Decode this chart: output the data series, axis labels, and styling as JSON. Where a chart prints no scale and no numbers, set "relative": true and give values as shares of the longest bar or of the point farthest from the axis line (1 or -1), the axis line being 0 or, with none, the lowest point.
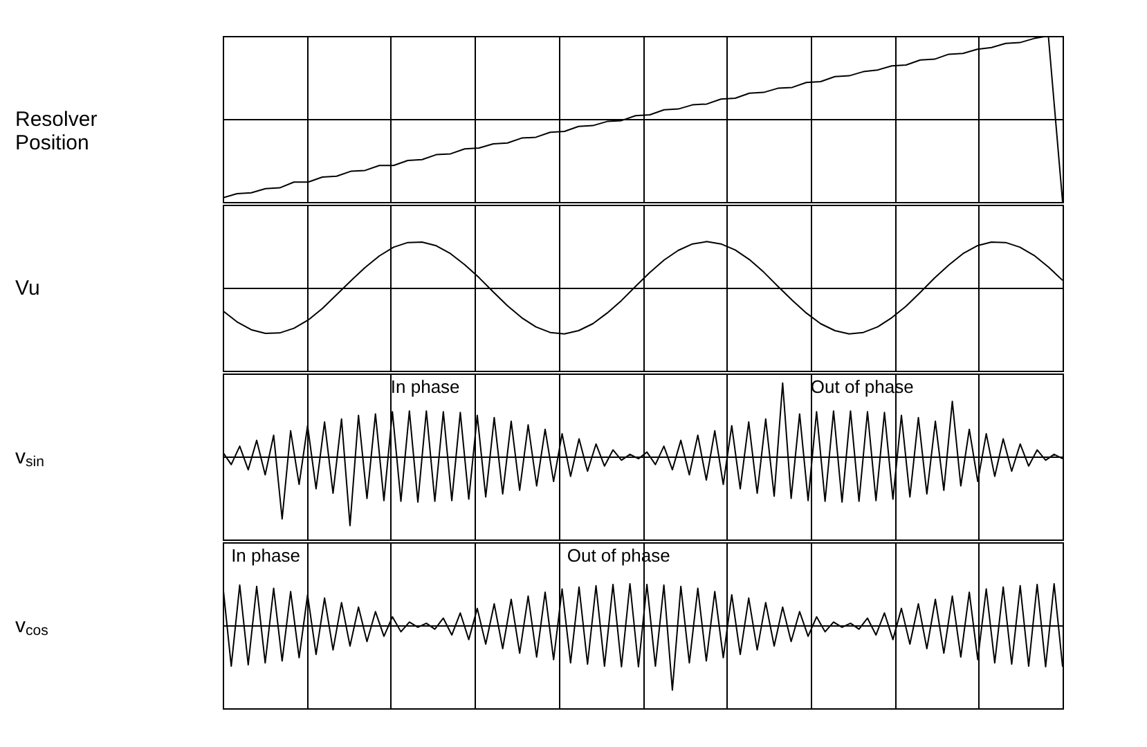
{
  "chart_data": [
    {
      "type": "line",
      "relative": true,
      "ylabel": "Resolver Position",
      "grid": true,
      "tick_labels": false,
      "categories": [
        null,
        null,
        null,
        null,
        null,
        null,
        null,
        null,
        null,
        null,
        null,
        null,
        null,
        null,
        null,
        null,
        null,
        null,
        null,
        null,
        null,
        null,
        null,
        null,
        null,
        null,
        null,
        null,
        null,
        null,
        null,
        null,
        null,
        null,
        null,
        null,
        null,
        null,
        null,
        null,
        null,
        null,
        null,
        null,
        null,
        null,
        null,
        null,
        null,
        null,
        null,
        null,
        null,
        null,
        null,
        null,
        null,
        null,
        null,
        null
      ],
      "series": [
        {
          "color": "#000000",
          "values": [
            -0.95,
            -0.9,
            -0.89,
            -0.84,
            -0.83,
            -0.76,
            -0.76,
            -0.7,
            -0.69,
            -0.63,
            -0.62,
            -0.56,
            -0.56,
            -0.5,
            -0.49,
            -0.43,
            -0.42,
            -0.36,
            -0.35,
            -0.3,
            -0.29,
            -0.23,
            -0.22,
            -0.16,
            -0.15,
            -0.09,
            -0.08,
            -0.03,
            -0.02,
            0.04,
            0.05,
            0.11,
            0.12,
            0.17,
            0.18,
            0.24,
            0.25,
            0.31,
            0.32,
            0.37,
            0.38,
            0.44,
            0.45,
            0.51,
            0.52,
            0.57,
            0.59,
            0.64,
            0.65,
            0.71,
            0.72,
            0.78,
            0.79,
            0.84,
            0.86,
            0.91,
            0.92,
            0.97,
            1,
            -1
          ]
        }
      ]
    },
    {
      "type": "line",
      "relative": true,
      "ylabel": "Vu",
      "grid": true,
      "tick_labels": false,
      "categories": [
        null,
        null,
        null,
        null,
        null,
        null,
        null,
        null,
        null,
        null,
        null,
        null,
        null,
        null,
        null,
        null,
        null,
        null,
        null,
        null,
        null,
        null,
        null,
        null,
        null,
        null,
        null,
        null,
        null,
        null,
        null,
        null,
        null,
        null,
        null,
        null,
        null,
        null,
        null,
        null,
        null,
        null,
        null,
        null,
        null,
        null,
        null,
        null,
        null,
        null,
        null,
        null,
        null,
        null,
        null,
        null,
        null,
        null,
        null,
        null
      ],
      "series": [
        {
          "color": "#000000",
          "values": [
            -0.5,
            -0.74,
            -0.91,
            -0.99,
            -0.98,
            -0.88,
            -0.7,
            -0.45,
            -0.15,
            0.15,
            0.44,
            0.69,
            0.88,
            0.98,
            0.99,
            0.91,
            0.74,
            0.5,
            0.22,
            -0.09,
            -0.39,
            -0.65,
            -0.85,
            -0.97,
            -1,
            -0.93,
            -0.78,
            -0.55,
            -0.28,
            0.03,
            0.33,
            0.6,
            0.81,
            0.95,
            1,
            0.95,
            0.82,
            0.61,
            0.34,
            0.03,
            -0.27,
            -0.55,
            -0.78,
            -0.93,
            -1,
            -0.97,
            -0.85,
            -0.65,
            -0.4,
            -0.1,
            0.21,
            0.49,
            0.74,
            0.91,
            0.99,
            0.98,
            0.88,
            0.7,
            0.45,
            0.16
          ]
        }
      ]
    },
    {
      "type": "line",
      "relative": true,
      "ylabel": "v$_{sin}$",
      "grid": true,
      "tick_labels": false,
      "annotations": [
        "In phase",
        "Out of phase"
      ],
      "categories": [
        null,
        null,
        null,
        null,
        null,
        null,
        null,
        null,
        null,
        null,
        null,
        null,
        null,
        null,
        null,
        null,
        null,
        null,
        null,
        null,
        null,
        null,
        null,
        null,
        null,
        null,
        null,
        null,
        null,
        null,
        null,
        null,
        null,
        null,
        null,
        null,
        null,
        null,
        null,
        null,
        null,
        null,
        null,
        null,
        null,
        null,
        null,
        null,
        null,
        null,
        null,
        null,
        null,
        null,
        null,
        null,
        null,
        null,
        null,
        null,
        null,
        null,
        null,
        null,
        null,
        null,
        null,
        null,
        null,
        null,
        null,
        null,
        null,
        null,
        null,
        null,
        null,
        null,
        null,
        null,
        null,
        null,
        null,
        null,
        null,
        null,
        null,
        null,
        null,
        null,
        null,
        null,
        null,
        null,
        null,
        null,
        null,
        null,
        null,
        null
      ],
      "series": [
        {
          "color": "#000000",
          "values": [
            0.06,
            -0.11,
            0.14,
            -0.18,
            0.22,
            -0.25,
            0.29,
            -0.85,
            0.35,
            -0.38,
            0.42,
            -0.44,
            0.47,
            -0.5,
            0.51,
            -0.94,
            0.56,
            -0.57,
            0.58,
            -0.6,
            0.61,
            -0.61,
            0.62,
            -0.62,
            0.62,
            -0.61,
            0.61,
            -0.6,
            0.6,
            -0.58,
            0.56,
            -0.55,
            0.53,
            -0.51,
            0.48,
            -0.46,
            0.43,
            -0.4,
            0.37,
            -0.34,
            0.31,
            -0.27,
            0.24,
            -0.2,
            0.17,
            -0.13,
            0.09,
            -0.05,
            0.03,
            -0.03,
            0.06,
            -0.11,
            0.14,
            -0.18,
            0.22,
            -0.25,
            0.29,
            -0.32,
            0.35,
            -0.38,
            0.42,
            -0.44,
            0.47,
            -0.5,
            0.51,
            -0.54,
            1,
            -0.57,
            0.58,
            -0.6,
            0.61,
            -0.61,
            0.62,
            -0.62,
            0.62,
            -0.61,
            0.61,
            -0.6,
            0.6,
            -0.58,
            0.56,
            -0.55,
            0.53,
            -0.51,
            0.48,
            -0.46,
            0.75,
            -0.4,
            0.37,
            -0.34,
            0.31,
            -0.27,
            0.24,
            -0.2,
            0.17,
            -0.13,
            0.09,
            -0.05,
            0.03,
            -0.03
          ]
        }
      ]
    },
    {
      "type": "line",
      "relative": true,
      "ylabel": "v$_{cos}$",
      "grid": true,
      "tick_labels": false,
      "annotations": [
        "In phase",
        "Out of phase"
      ],
      "categories": [
        null,
        null,
        null,
        null,
        null,
        null,
        null,
        null,
        null,
        null,
        null,
        null,
        null,
        null,
        null,
        null,
        null,
        null,
        null,
        null,
        null,
        null,
        null,
        null,
        null,
        null,
        null,
        null,
        null,
        null,
        null,
        null,
        null,
        null,
        null,
        null,
        null,
        null,
        null,
        null,
        null,
        null,
        null,
        null,
        null,
        null,
        null,
        null,
        null,
        null,
        null,
        null,
        null,
        null,
        null,
        null,
        null,
        null,
        null,
        null,
        null,
        null,
        null,
        null,
        null,
        null,
        null,
        null,
        null,
        null,
        null,
        null,
        null,
        null,
        null,
        null,
        null,
        null,
        null,
        null,
        null,
        null,
        null,
        null,
        null,
        null,
        null,
        null,
        null,
        null,
        null,
        null,
        null,
        null,
        null,
        null,
        null,
        null,
        null,
        null
      ],
      "series": [
        {
          "color": "#000000",
          "values": [
            0.63,
            -0.63,
            0.62,
            -0.61,
            0.6,
            -0.58,
            0.57,
            -0.55,
            0.52,
            -0.5,
            0.47,
            -0.45,
            0.42,
            -0.38,
            0.35,
            -0.32,
            0.28,
            -0.25,
            0.21,
            -0.17,
            0.13,
            -0.1,
            0.05,
            -0.03,
            0.03,
            -0.06,
            0.11,
            -0.15,
            0.19,
            -0.22,
            0.26,
            -0.29,
            0.33,
            -0.36,
            0.4,
            -0.43,
            0.45,
            -0.49,
            0.51,
            -0.53,
            0.56,
            -0.58,
            0.59,
            -0.6,
            0.61,
            -0.63,
            0.63,
            -0.64,
            0.64,
            -0.64,
            0.63,
            -0.63,
            0.62,
            -1,
            0.6,
            -0.58,
            0.57,
            -0.55,
            0.52,
            -0.5,
            0.47,
            -0.45,
            0.42,
            -0.38,
            0.35,
            -0.32,
            0.28,
            -0.25,
            0.21,
            -0.17,
            0.13,
            -0.1,
            0.05,
            -0.03,
            0.03,
            -0.06,
            0.11,
            -0.15,
            0.19,
            -0.22,
            0.26,
            -0.29,
            0.33,
            -0.36,
            0.4,
            -0.43,
            0.45,
            -0.49,
            0.51,
            -0.53,
            0.56,
            -0.58,
            0.59,
            -0.6,
            0.61,
            -0.63,
            0.63,
            -0.64,
            0.64,
            -0.64
          ]
        }
      ]
    }
  ]
}
